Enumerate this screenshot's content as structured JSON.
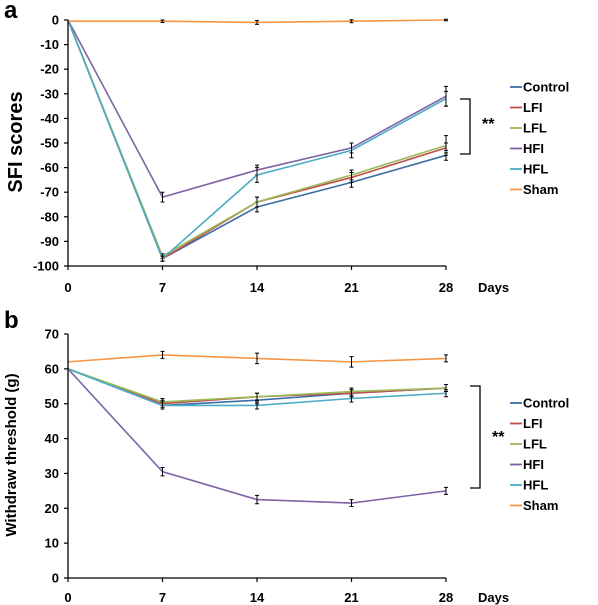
{
  "chart_data": [
    {
      "type": "line",
      "panel": "a",
      "ylabel": "SFI scores",
      "xlabel": "Days",
      "x": [
        0,
        7,
        14,
        21,
        28
      ],
      "xticks": [
        "0",
        "7",
        "14",
        "21",
        "28"
      ],
      "ylim": [
        -100,
        0
      ],
      "yticks": [
        0,
        -10,
        -20,
        -30,
        -40,
        -50,
        -60,
        -70,
        -80,
        -90,
        -100
      ],
      "series": [
        {
          "name": "Control",
          "color": "#3a6ea5",
          "values": [
            0,
            -97,
            -76,
            -66,
            -55
          ],
          "err": [
            0,
            1,
            2,
            2,
            2
          ]
        },
        {
          "name": "LFI",
          "color": "#c0504d",
          "values": [
            0,
            -97,
            -74,
            -64,
            -52
          ],
          "err": [
            0,
            1,
            2,
            2,
            2
          ]
        },
        {
          "name": "LFL",
          "color": "#9bbb59",
          "values": [
            0,
            -96,
            -74,
            -63,
            -51
          ],
          "err": [
            0,
            1,
            2,
            2,
            4
          ]
        },
        {
          "name": "HFI",
          "color": "#7f63a5",
          "values": [
            0,
            -72,
            -61,
            -52,
            -31
          ],
          "err": [
            0,
            2,
            2,
            2,
            4
          ]
        },
        {
          "name": "HFL",
          "color": "#4bacc6",
          "values": [
            0,
            -97,
            -63,
            -53,
            -32
          ],
          "err": [
            0,
            1,
            3,
            3,
            3
          ]
        },
        {
          "name": "Sham",
          "color": "#f79646",
          "values": [
            -0.5,
            -0.5,
            -1,
            -0.5,
            0
          ],
          "err": [
            0,
            0.5,
            0.8,
            0.6,
            0.3
          ]
        }
      ],
      "legend": "right",
      "annotation": "**"
    },
    {
      "type": "line",
      "panel": "b",
      "ylabel": "Withdraw threshold (g)",
      "xlabel": "Days",
      "x": [
        0,
        7,
        14,
        21,
        28
      ],
      "xticks": [
        "0",
        "7",
        "14",
        "21",
        "28"
      ],
      "ylim": [
        0,
        70
      ],
      "yticks": [
        0,
        10,
        20,
        30,
        40,
        50,
        60,
        70
      ],
      "series": [
        {
          "name": "Control",
          "color": "#3a6ea5",
          "values": [
            60,
            49.5,
            51,
            53,
            54.5
          ],
          "err": [
            0,
            1,
            1,
            1,
            1
          ]
        },
        {
          "name": "LFI",
          "color": "#c0504d",
          "values": [
            60,
            50,
            52,
            53,
            54.5
          ],
          "err": [
            0,
            1,
            1,
            1,
            1
          ]
        },
        {
          "name": "LFL",
          "color": "#9bbb59",
          "values": [
            60,
            50.5,
            52,
            53.5,
            54.5
          ],
          "err": [
            0,
            1,
            1,
            1,
            1
          ]
        },
        {
          "name": "HFI",
          "color": "#7f63a5",
          "values": [
            60,
            30.5,
            22.5,
            21.5,
            25
          ],
          "err": [
            0,
            1.2,
            1.2,
            1,
            1
          ]
        },
        {
          "name": "HFL",
          "color": "#4bacc6",
          "values": [
            60,
            49.5,
            49.5,
            51.5,
            53
          ],
          "err": [
            0,
            1,
            1,
            1,
            1
          ]
        },
        {
          "name": "Sham",
          "color": "#f79646",
          "values": [
            62,
            64,
            63,
            62,
            63
          ],
          "err": [
            0,
            1,
            1.5,
            1.5,
            1
          ]
        }
      ],
      "legend": "right",
      "annotation": "**"
    }
  ]
}
